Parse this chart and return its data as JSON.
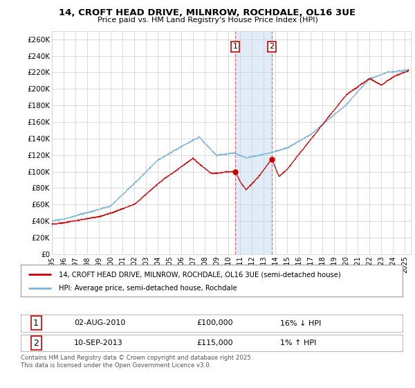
{
  "title_line1": "14, CROFT HEAD DRIVE, MILNROW, ROCHDALE, OL16 3UE",
  "title_line2": "Price paid vs. HM Land Registry's House Price Index (HPI)",
  "ylim": [
    0,
    270000
  ],
  "yticks": [
    0,
    20000,
    40000,
    60000,
    80000,
    100000,
    120000,
    140000,
    160000,
    180000,
    200000,
    220000,
    240000,
    260000
  ],
  "ytick_labels": [
    "£0",
    "£20K",
    "£40K",
    "£60K",
    "£80K",
    "£100K",
    "£120K",
    "£140K",
    "£160K",
    "£180K",
    "£200K",
    "£220K",
    "£240K",
    "£260K"
  ],
  "xlim_start": 1995.0,
  "xlim_end": 2025.5,
  "xtick_years": [
    1995,
    1996,
    1997,
    1998,
    1999,
    2000,
    2001,
    2002,
    2003,
    2004,
    2005,
    2006,
    2007,
    2008,
    2009,
    2010,
    2011,
    2012,
    2013,
    2014,
    2015,
    2016,
    2017,
    2018,
    2019,
    2020,
    2021,
    2022,
    2023,
    2024,
    2025
  ],
  "hpi_color": "#7ab5d8",
  "price_color": "#cc0000",
  "transaction1_date": 2010.58,
  "transaction2_date": 2013.69,
  "transaction1_price": 100000,
  "transaction2_price": 115000,
  "shade_color": "#e0ecf8",
  "dashed_color": "#e07070",
  "legend_line1": "14, CROFT HEAD DRIVE, MILNROW, ROCHDALE, OL16 3UE (semi-detached house)",
  "legend_line2": "HPI: Average price, semi-detached house, Rochdale",
  "table_row1": [
    "1",
    "02-AUG-2010",
    "£100,000",
    "16% ↓ HPI"
  ],
  "table_row2": [
    "2",
    "10-SEP-2013",
    "£115,000",
    "1% ↑ HPI"
  ],
  "footnote": "Contains HM Land Registry data © Crown copyright and database right 2025.\nThis data is licensed under the Open Government Licence v3.0.",
  "background_color": "#ffffff",
  "grid_color": "#cccccc"
}
